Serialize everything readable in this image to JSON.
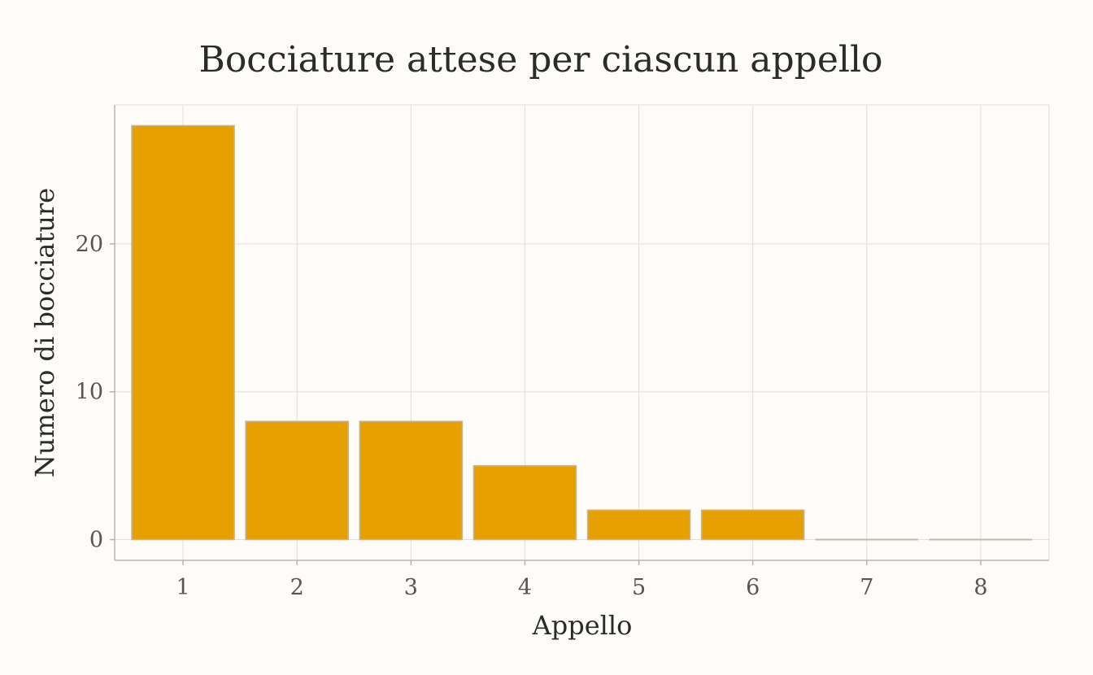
{
  "chart_data": {
    "type": "bar",
    "title": "Bocciature attese per ciascun appello",
    "xlabel": "Appello",
    "ylabel": "Numero di bocciature",
    "categories": [
      "1",
      "2",
      "3",
      "4",
      "5",
      "6",
      "7",
      "8"
    ],
    "values": [
      28,
      8,
      8,
      5,
      2,
      2,
      0,
      0
    ],
    "yticks": [
      0,
      10,
      20
    ],
    "ylim": [
      -1.4,
      29.4
    ],
    "grid": true,
    "colors": {
      "bar": "#e6a100",
      "background": "#fdfcf9"
    }
  }
}
